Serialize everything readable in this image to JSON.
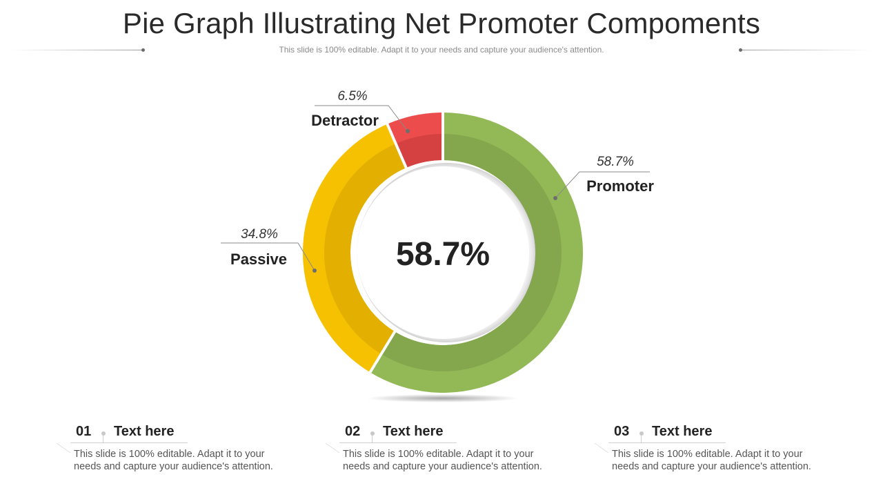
{
  "header": {
    "title": "Pie Graph Illustrating Net Promoter Compoments",
    "subtitle": "This slide is 100% editable. Adapt it to your needs and capture your audience's attention."
  },
  "chart_data": {
    "type": "pie",
    "donut": true,
    "center_label": "58.7%",
    "slices": [
      {
        "label": "Promoter",
        "value": 58.7,
        "display": "58.7%",
        "color": "#93b957",
        "inner_color": "#84a64d"
      },
      {
        "label": "Passive",
        "value": 34.8,
        "display": "34.8%",
        "color": "#f5c100",
        "inner_color": "#e3b001"
      },
      {
        "label": "Detractor",
        "value": 6.5,
        "display": "6.5%",
        "color": "#ec4c4c",
        "inner_color": "#d54040"
      }
    ]
  },
  "items": [
    {
      "number": "01",
      "heading": "Text here",
      "text": "This slide is 100% editable. Adapt it to your needs and capture your audience's attention."
    },
    {
      "number": "02",
      "heading": "Text here",
      "text": "This slide is 100% editable. Adapt it to your needs and capture your audience's attention."
    },
    {
      "number": "03",
      "heading": "Text here",
      "text": "This slide is 100% editable. Adapt it to your needs and capture your audience's attention."
    }
  ]
}
